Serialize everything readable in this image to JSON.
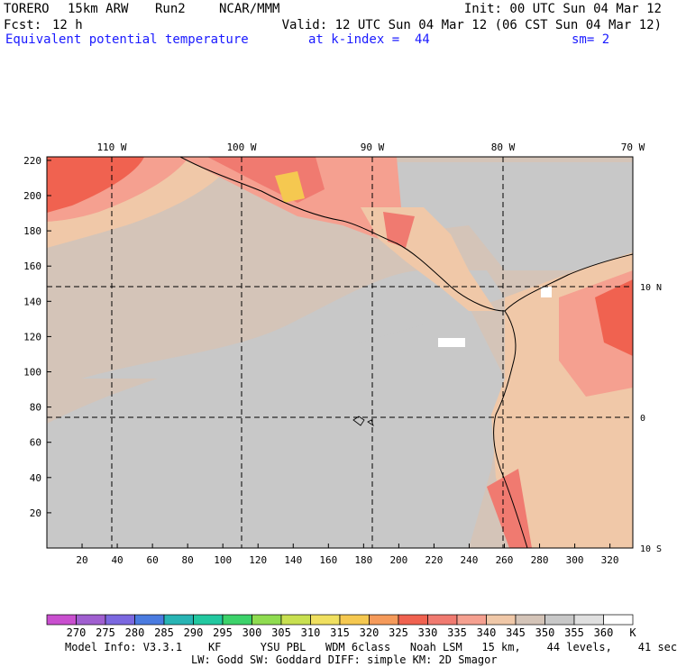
{
  "header": {
    "model": "TORERO",
    "res": "15km ARW",
    "run": "Run2",
    "org": "NCAR/MMM",
    "init": "Init: 00 UTC Sun 04 Mar 12",
    "fcst_label": "Fcst:",
    "fcst_hours": "12 h",
    "valid": "Valid: 12 UTC Sun 04 Mar 12 (06 CST Sun 04 Mar 12)",
    "field": "Equivalent potential temperature",
    "level": "at k-index =  44",
    "smoothing": "sm= 2"
  },
  "axes": {
    "lon_labels": [
      "110 W",
      "100 W",
      "90 W",
      "80 W",
      "70 W"
    ],
    "lat_labels": [
      "10 N",
      "0",
      "10 S"
    ],
    "x_ticks": [
      "20",
      "40",
      "60",
      "80",
      "100",
      "120",
      "140",
      "160",
      "180",
      "200",
      "220",
      "240",
      "260",
      "280",
      "300",
      "320"
    ],
    "y_ticks": [
      "220",
      "200",
      "180",
      "160",
      "140",
      "120",
      "100",
      "80",
      "60",
      "40",
      "20"
    ]
  },
  "colorbar": {
    "values": [
      "270",
      "275",
      "280",
      "285",
      "290",
      "295",
      "300",
      "305",
      "310",
      "315",
      "320",
      "325",
      "330",
      "335",
      "340",
      "345",
      "350",
      "355",
      "360"
    ],
    "unit": "K",
    "colors": [
      "#c94fcf",
      "#a05fd0",
      "#7b68e0",
      "#4a7be0",
      "#28b4b4",
      "#22c8a0",
      "#3cd26a",
      "#8fdc50",
      "#c8e050",
      "#f0e060",
      "#f5c850",
      "#f59a5a",
      "#f06250",
      "#f07a70",
      "#f5a090",
      "#f0c8a8",
      "#d4c4b8",
      "#c8c8c8",
      "#e0e0e0",
      "#ffffff"
    ]
  },
  "footer": {
    "line1": "Model Info: V3.3.1    KF      YSU PBL   WDM 6class   Noah LSM   15 km,    44 levels,    41 sec",
    "line2": "LW: Godd SW: Goddard DIFF: simple KM: 2D Smagor"
  }
}
